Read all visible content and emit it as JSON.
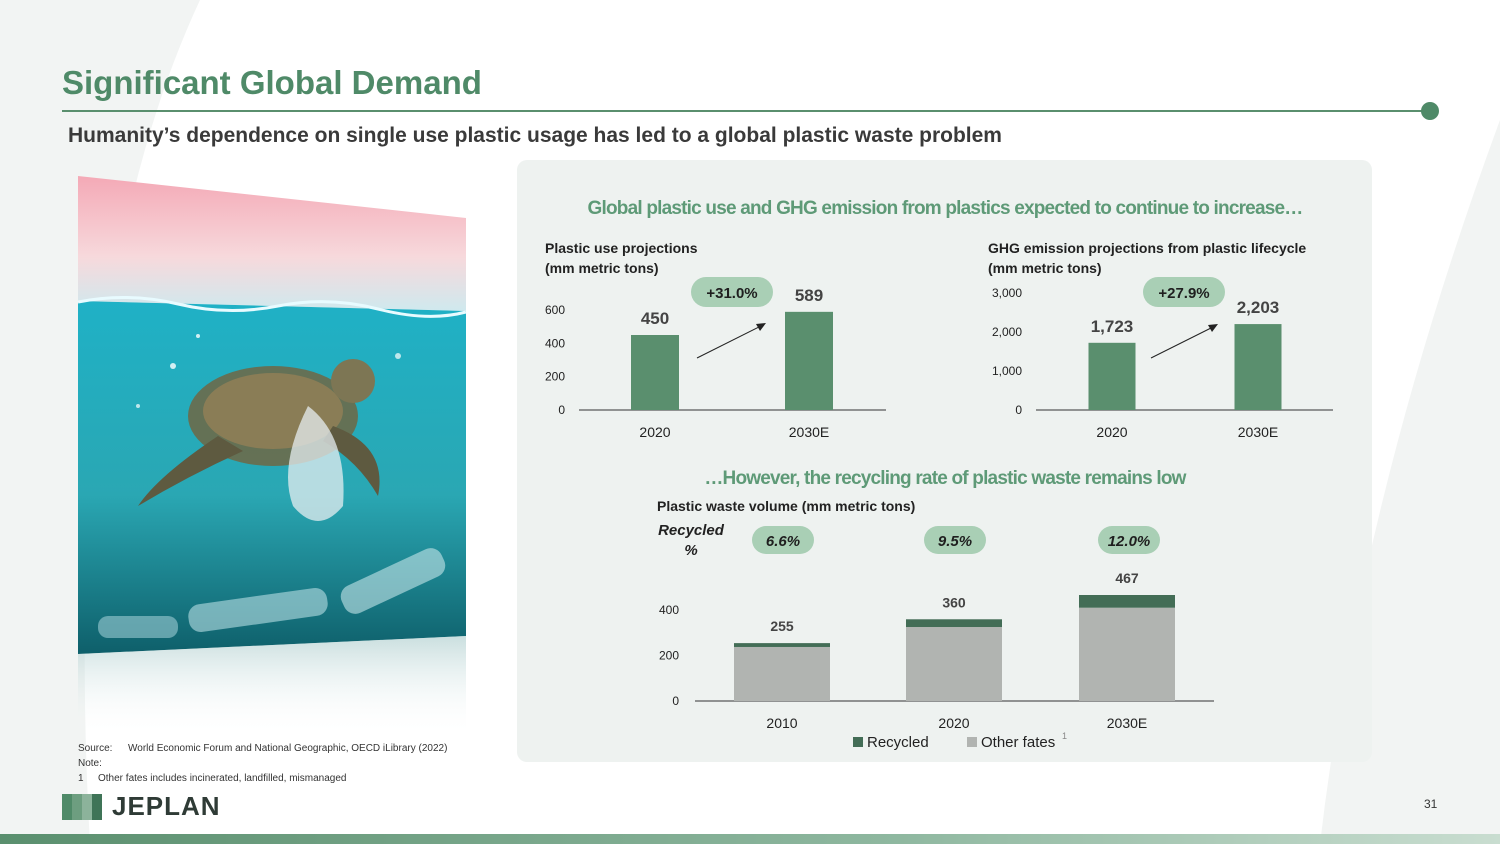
{
  "title": "Significant Global Demand",
  "subtitle": "Humanity’s dependence on single use plastic usage has led to a global plastic waste problem",
  "colors": {
    "accent": "#4f8a68",
    "bar": "#5a8f6e",
    "recycled": "#436d56",
    "other": "#b1b4b1",
    "badge": "#a9cfb5",
    "panel": "#eef2f0"
  },
  "panel": {
    "headline_top": "Global plastic use and GHG emission from plastics expected to continue to increase…",
    "headline_bottom": "…However, the recycling rate of plastic waste remains low"
  },
  "chart_data": [
    {
      "type": "bar",
      "title_line1": "Plastic use projections",
      "title_line2": "(mm metric tons)",
      "categories": [
        "2020",
        "2030E"
      ],
      "values": [
        450,
        589
      ],
      "value_labels": [
        "450",
        "589"
      ],
      "ylim": [
        0,
        600
      ],
      "yticks": [
        0,
        200,
        400,
        600
      ],
      "ytick_labels": [
        "0",
        "200",
        "400",
        "600"
      ],
      "growth_label": "+31.0%"
    },
    {
      "type": "bar",
      "title_line1": "GHG emission projections from plastic lifecycle",
      "title_line2": "(mm metric tons)",
      "categories": [
        "2020",
        "2030E"
      ],
      "values": [
        1723,
        2203
      ],
      "value_labels": [
        "1,723",
        "2,203"
      ],
      "ylim": [
        0,
        3000
      ],
      "yticks": [
        0,
        1000,
        2000,
        3000
      ],
      "ytick_labels": [
        "0",
        "1,000",
        "2,000",
        "3,000"
      ],
      "growth_label": "+27.9%"
    },
    {
      "type": "bar",
      "stacked": true,
      "title": "Plastic waste volume (mm metric tons)",
      "categories": [
        "2010",
        "2020",
        "2030E"
      ],
      "totals": [
        255,
        360,
        467
      ],
      "total_labels": [
        "255",
        "360",
        "467"
      ],
      "recycled_pct": [
        6.6,
        9.5,
        12.0
      ],
      "recycled_pct_labels": [
        "6.6%",
        "9.5%",
        "12.0%"
      ],
      "recycled_pct_title_line1": "Recycled",
      "recycled_pct_title_line2": "%",
      "series": [
        {
          "name": "Recycled",
          "values": [
            17,
            34,
            56
          ]
        },
        {
          "name": "Other fates",
          "values": [
            238,
            326,
            411
          ]
        }
      ],
      "legend_sup": "1",
      "ylim": [
        0,
        467
      ],
      "yticks": [
        0,
        200,
        400
      ],
      "ytick_labels": [
        "0",
        "200",
        "400"
      ],
      "legend_position": "bottom"
    }
  ],
  "footnotes": {
    "source_label": "Source:",
    "source_text": "World Economic Forum and National Geographic, OECD iLibrary (2022)",
    "note_label": "Note:",
    "note_num": "1",
    "note_text": "Other fates includes incinerated, landfilled, mismanaged"
  },
  "logo": "JEPLAN",
  "page_number": "31",
  "photo_icon": "sea-turtle-plastic-photo"
}
